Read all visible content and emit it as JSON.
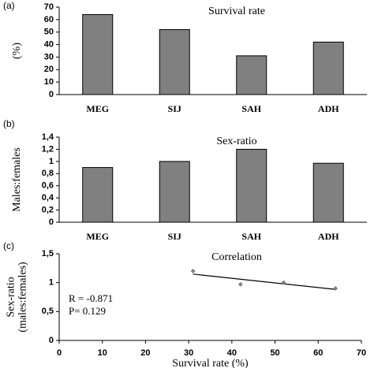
{
  "chart_data": [
    {
      "type": "bar",
      "panel_label": "(a)",
      "title": "Survival rate",
      "ylabel": [
        "(%)"
      ],
      "categories": [
        "MEG",
        "SIJ",
        "SAH",
        "ADH"
      ],
      "values": [
        64,
        52,
        31,
        42
      ],
      "color": "#808080",
      "ylim": [
        0,
        70
      ],
      "yticks": [
        0,
        10,
        20,
        30,
        40,
        50,
        60,
        70
      ]
    },
    {
      "type": "bar",
      "panel_label": "(b)",
      "title": "Sex-ratio",
      "ylabel": [
        "Males:females"
      ],
      "categories": [
        "MEG",
        "SIJ",
        "SAH",
        "ADH"
      ],
      "values": [
        0.9,
        1.0,
        1.2,
        0.97
      ],
      "color": "#808080",
      "ylim": [
        0,
        1.4
      ],
      "yticks": [
        0,
        {
          "value": 0.2,
          "label": "0,2"
        },
        {
          "value": 0.4,
          "label": "0,4"
        },
        {
          "value": 0.6,
          "label": "0,6"
        },
        {
          "value": 0.8,
          "label": "0,8"
        },
        1,
        {
          "value": 1.2,
          "label": "1,2"
        },
        {
          "value": 1.4,
          "label": "1,4"
        }
      ]
    },
    {
      "type": "scatter",
      "panel_label": "(c)",
      "title": "Correlation",
      "ylabel": [
        "Sex-ratio",
        "(males:females)"
      ],
      "xlabel": "Survival rate (%)",
      "x": [
        31,
        42,
        52,
        64
      ],
      "values": [
        1.2,
        0.97,
        1.0,
        0.9
      ],
      "color": "#808080",
      "trendline": true,
      "annotations": [
        "R = -0.871",
        "P= 0.129"
      ],
      "xlim": [
        0,
        70
      ],
      "xticks": [
        0,
        10,
        20,
        30,
        40,
        50,
        60,
        70
      ],
      "ylim": [
        0,
        1.5
      ],
      "yticks": [
        0,
        {
          "value": 0.5,
          "label": "0,5"
        },
        1,
        {
          "value": 1.5,
          "label": "1,5"
        }
      ]
    }
  ]
}
